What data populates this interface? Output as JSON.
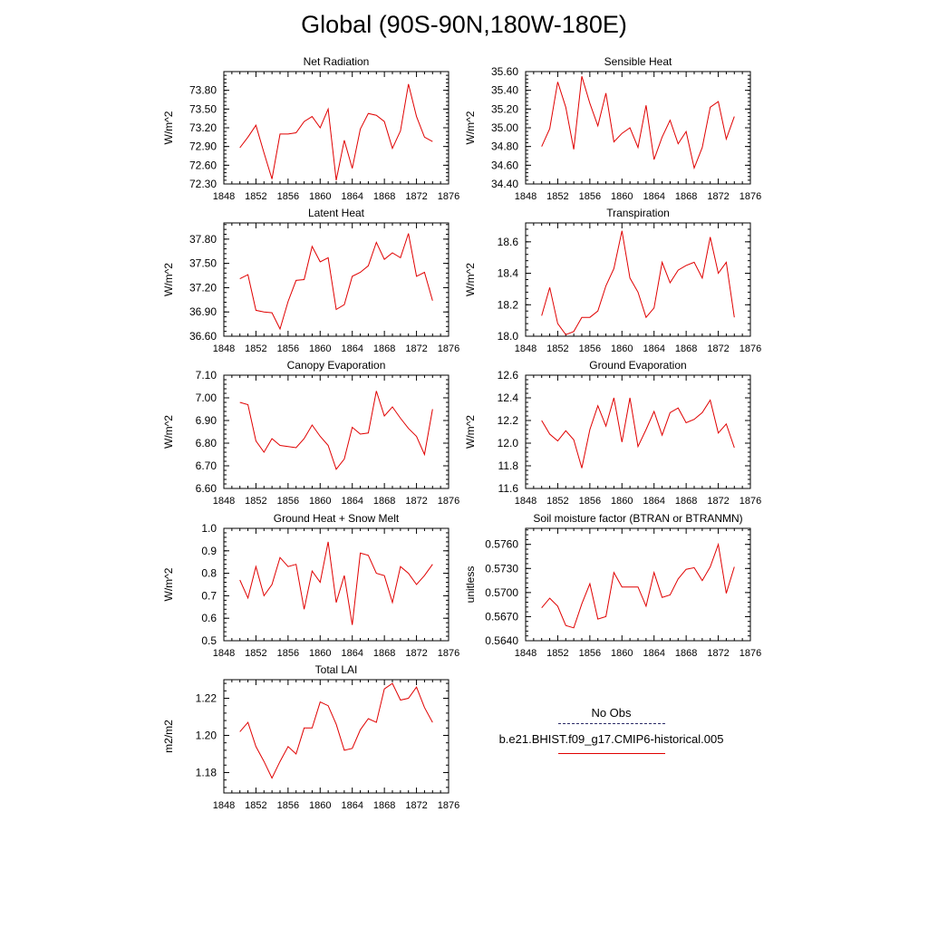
{
  "page_title": "Global (90S-90N,180W-180E)",
  "colors": {
    "model_line": "#e00000",
    "obs_line": "#2a2a66"
  },
  "legend": {
    "obs_label": "No Obs",
    "model_label": "b.e21.BHIST.f09_g17.CMIP6-historical.005"
  },
  "chart_data": [
    {
      "type": "line",
      "title": "Net Radiation",
      "ylabel": "W/m^2",
      "xlim": [
        1848,
        1876
      ],
      "xticks": [
        1848,
        1852,
        1856,
        1860,
        1864,
        1868,
        1872,
        1876
      ],
      "ylim": [
        72.3,
        74.1
      ],
      "yticks": [
        "72.30",
        "72.60",
        "72.90",
        "73.20",
        "73.50",
        "73.80"
      ],
      "series": [
        {
          "name": "b.e21.BHIST.f09_g17.CMIP6-historical.005",
          "x": [
            1850,
            1851,
            1852,
            1853,
            1854,
            1855,
            1856,
            1857,
            1858,
            1859,
            1860,
            1861,
            1862,
            1863,
            1864,
            1865,
            1866,
            1867,
            1868,
            1869,
            1870,
            1871,
            1872,
            1873,
            1874
          ],
          "y": [
            72.88,
            73.05,
            73.24,
            72.8,
            72.38,
            73.1,
            73.1,
            73.12,
            73.3,
            73.38,
            73.2,
            73.5,
            72.36,
            73.0,
            72.55,
            73.18,
            73.43,
            73.4,
            73.3,
            72.87,
            73.15,
            73.9,
            73.38,
            73.05,
            72.98
          ]
        }
      ]
    },
    {
      "type": "line",
      "title": "Sensible Heat",
      "ylabel": "W/m^2",
      "xlim": [
        1848,
        1876
      ],
      "xticks": [
        1848,
        1852,
        1856,
        1860,
        1864,
        1868,
        1872,
        1876
      ],
      "ylim": [
        34.4,
        35.6
      ],
      "yticks": [
        "34.40",
        "34.60",
        "34.80",
        "35.00",
        "35.20",
        "35.40",
        "35.60"
      ],
      "series": [
        {
          "name": "b.e21.BHIST.f09_g17.CMIP6-historical.005",
          "x": [
            1850,
            1851,
            1852,
            1853,
            1854,
            1855,
            1856,
            1857,
            1858,
            1859,
            1860,
            1861,
            1862,
            1863,
            1864,
            1865,
            1866,
            1867,
            1868,
            1869,
            1870,
            1871,
            1872,
            1873,
            1874
          ],
          "y": [
            34.8,
            34.99,
            35.49,
            35.22,
            34.77,
            35.55,
            35.26,
            35.02,
            35.37,
            34.85,
            34.94,
            35.0,
            34.79,
            35.24,
            34.66,
            34.9,
            35.08,
            34.83,
            34.96,
            34.57,
            34.79,
            35.22,
            35.28,
            34.88,
            35.12
          ]
        }
      ]
    },
    {
      "type": "line",
      "title": "Latent Heat",
      "ylabel": "W/m^2",
      "xlim": [
        1848,
        1876
      ],
      "xticks": [
        1848,
        1852,
        1856,
        1860,
        1864,
        1868,
        1872,
        1876
      ],
      "ylim": [
        36.6,
        38.0
      ],
      "yticks": [
        "36.60",
        "36.90",
        "37.20",
        "37.50",
        "37.80"
      ],
      "series": [
        {
          "name": "b.e21.BHIST.f09_g17.CMIP6-historical.005",
          "x": [
            1850,
            1851,
            1852,
            1853,
            1854,
            1855,
            1856,
            1857,
            1858,
            1859,
            1860,
            1861,
            1862,
            1863,
            1864,
            1865,
            1866,
            1867,
            1868,
            1869,
            1870,
            1871,
            1872,
            1873,
            1874
          ],
          "y": [
            37.31,
            37.36,
            36.92,
            36.9,
            36.89,
            36.69,
            37.03,
            37.29,
            37.3,
            37.71,
            37.52,
            37.57,
            36.93,
            36.99,
            37.34,
            37.39,
            37.47,
            37.76,
            37.55,
            37.63,
            37.57,
            37.87,
            37.34,
            37.39,
            37.04
          ]
        }
      ]
    },
    {
      "type": "line",
      "title": "Transpiration",
      "ylabel": "W/m^2",
      "xlim": [
        1848,
        1876
      ],
      "xticks": [
        1848,
        1852,
        1856,
        1860,
        1864,
        1868,
        1872,
        1876
      ],
      "ylim": [
        18.0,
        18.72
      ],
      "yticks": [
        "18.0",
        "18.2",
        "18.4",
        "18.6"
      ],
      "series": [
        {
          "name": "b.e21.BHIST.f09_g17.CMIP6-historical.005",
          "x": [
            1850,
            1851,
            1852,
            1853,
            1854,
            1855,
            1856,
            1857,
            1858,
            1859,
            1860,
            1861,
            1862,
            1863,
            1864,
            1865,
            1866,
            1867,
            1868,
            1869,
            1870,
            1871,
            1872,
            1873,
            1874
          ],
          "y": [
            18.13,
            18.31,
            18.08,
            18.01,
            18.03,
            18.12,
            18.12,
            18.16,
            18.32,
            18.43,
            18.67,
            18.37,
            18.28,
            18.12,
            18.18,
            18.47,
            18.34,
            18.42,
            18.45,
            18.47,
            18.37,
            18.63,
            18.4,
            18.47,
            18.12
          ]
        }
      ]
    },
    {
      "type": "line",
      "title": "Canopy Evaporation",
      "ylabel": "W/m^2",
      "xlim": [
        1848,
        1876
      ],
      "xticks": [
        1848,
        1852,
        1856,
        1860,
        1864,
        1868,
        1872,
        1876
      ],
      "ylim": [
        6.6,
        7.1
      ],
      "yticks": [
        "6.60",
        "6.70",
        "6.80",
        "6.90",
        "7.00",
        "7.10"
      ],
      "series": [
        {
          "name": "b.e21.BHIST.f09_g17.CMIP6-historical.005",
          "x": [
            1850,
            1851,
            1852,
            1853,
            1854,
            1855,
            1856,
            1857,
            1858,
            1859,
            1860,
            1861,
            1862,
            1863,
            1864,
            1865,
            1866,
            1867,
            1868,
            1869,
            1870,
            1871,
            1872,
            1873,
            1874
          ],
          "y": [
            6.98,
            6.97,
            6.81,
            6.76,
            6.82,
            6.79,
            6.785,
            6.78,
            6.82,
            6.88,
            6.83,
            6.79,
            6.685,
            6.73,
            6.87,
            6.84,
            6.845,
            7.03,
            6.92,
            6.96,
            6.91,
            6.865,
            6.83,
            6.75,
            6.95
          ]
        }
      ]
    },
    {
      "type": "line",
      "title": "Ground Evaporation",
      "ylabel": "W/m^2",
      "xlim": [
        1848,
        1876
      ],
      "xticks": [
        1848,
        1852,
        1856,
        1860,
        1864,
        1868,
        1872,
        1876
      ],
      "ylim": [
        11.6,
        12.6
      ],
      "yticks": [
        "11.6",
        "11.8",
        "12.0",
        "12.2",
        "12.4",
        "12.6"
      ],
      "series": [
        {
          "name": "b.e21.BHIST.f09_g17.CMIP6-historical.005",
          "x": [
            1850,
            1851,
            1852,
            1853,
            1854,
            1855,
            1856,
            1857,
            1858,
            1859,
            1860,
            1861,
            1862,
            1863,
            1864,
            1865,
            1866,
            1867,
            1868,
            1869,
            1870,
            1871,
            1872,
            1873,
            1874
          ],
          "y": [
            12.2,
            12.08,
            12.02,
            12.11,
            12.03,
            11.78,
            12.12,
            12.33,
            12.15,
            12.4,
            12.01,
            12.4,
            11.97,
            12.12,
            12.28,
            12.07,
            12.27,
            12.31,
            12.18,
            12.21,
            12.27,
            12.38,
            12.09,
            12.17,
            11.96
          ]
        }
      ]
    },
    {
      "type": "line",
      "title": "Ground Heat + Snow Melt",
      "ylabel": "W/m^2",
      "xlim": [
        1848,
        1876
      ],
      "xticks": [
        1848,
        1852,
        1856,
        1860,
        1864,
        1868,
        1872,
        1876
      ],
      "ylim": [
        0.5,
        1.0
      ],
      "yticks": [
        "0.5",
        "0.6",
        "0.7",
        "0.8",
        "0.9",
        "1.0"
      ],
      "series": [
        {
          "name": "b.e21.BHIST.f09_g17.CMIP6-historical.005",
          "x": [
            1850,
            1851,
            1852,
            1853,
            1854,
            1855,
            1856,
            1857,
            1858,
            1859,
            1860,
            1861,
            1862,
            1863,
            1864,
            1865,
            1866,
            1867,
            1868,
            1869,
            1870,
            1871,
            1872,
            1873,
            1874
          ],
          "y": [
            0.77,
            0.69,
            0.83,
            0.7,
            0.75,
            0.87,
            0.83,
            0.84,
            0.64,
            0.81,
            0.76,
            0.94,
            0.67,
            0.79,
            0.57,
            0.89,
            0.88,
            0.8,
            0.79,
            0.67,
            0.83,
            0.8,
            0.75,
            0.79,
            0.84
          ]
        }
      ]
    },
    {
      "type": "line",
      "title": "Soil moisture factor (BTRAN or BTRANMN)",
      "ylabel": "unitless",
      "xlim": [
        1848,
        1876
      ],
      "xticks": [
        1848,
        1852,
        1856,
        1860,
        1864,
        1868,
        1872,
        1876
      ],
      "ylim": [
        0.564,
        0.578
      ],
      "yticks": [
        "0.5640",
        "0.5670",
        "0.5700",
        "0.5730",
        "0.5760"
      ],
      "series": [
        {
          "name": "b.e21.BHIST.f09_g17.CMIP6-historical.005",
          "x": [
            1850,
            1851,
            1852,
            1853,
            1854,
            1855,
            1856,
            1857,
            1858,
            1859,
            1860,
            1861,
            1862,
            1863,
            1864,
            1865,
            1866,
            1867,
            1868,
            1869,
            1870,
            1871,
            1872,
            1873,
            1874
          ],
          "y": [
            0.5681,
            0.5693,
            0.5683,
            0.5659,
            0.5656,
            0.5686,
            0.5711,
            0.5667,
            0.567,
            0.5725,
            0.5707,
            0.5707,
            0.5707,
            0.5683,
            0.5725,
            0.5694,
            0.5697,
            0.5717,
            0.5729,
            0.5731,
            0.5715,
            0.5732,
            0.576,
            0.5699,
            0.5732
          ]
        }
      ]
    },
    {
      "type": "line",
      "title": "Total LAI",
      "ylabel": "m2/m2",
      "xlim": [
        1848,
        1876
      ],
      "xticks": [
        1848,
        1852,
        1856,
        1860,
        1864,
        1868,
        1872,
        1876
      ],
      "ylim": [
        1.169,
        1.23
      ],
      "yticks": [
        "1.18",
        "1.20",
        "1.22"
      ],
      "series": [
        {
          "name": "b.e21.BHIST.f09_g17.CMIP6-historical.005",
          "x": [
            1850,
            1851,
            1852,
            1853,
            1854,
            1855,
            1856,
            1857,
            1858,
            1859,
            1860,
            1861,
            1862,
            1863,
            1864,
            1865,
            1866,
            1867,
            1868,
            1869,
            1870,
            1871,
            1872,
            1873,
            1874
          ],
          "y": [
            1.202,
            1.207,
            1.194,
            1.186,
            1.177,
            1.186,
            1.194,
            1.19,
            1.204,
            1.204,
            1.218,
            1.216,
            1.206,
            1.192,
            1.193,
            1.203,
            1.209,
            1.207,
            1.225,
            1.228,
            1.219,
            1.22,
            1.226,
            1.215,
            1.207
          ]
        }
      ]
    }
  ]
}
